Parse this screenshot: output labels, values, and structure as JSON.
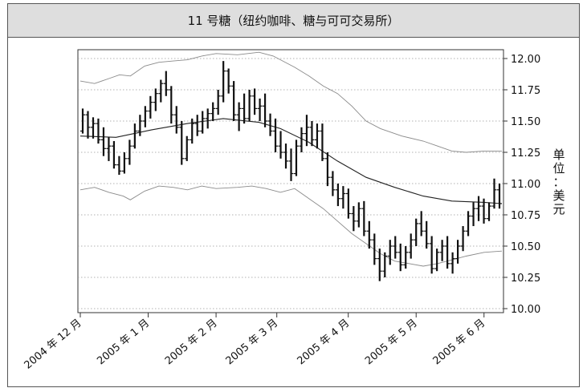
{
  "title": "11 号糖（纽约咖啡、糖与可可交易所）",
  "chart_data": {
    "type": "ohlc",
    "title": "11 号糖（纽约咖啡、糖与可可交易所）",
    "ylabel_chars": [
      "单",
      "位",
      "：",
      "美",
      "元"
    ],
    "ylim": [
      10.0,
      12.0
    ],
    "yticks": [
      10.0,
      10.25,
      10.5,
      10.75,
      11.0,
      11.25,
      11.5,
      11.75,
      12.0
    ],
    "ytick_labels": [
      "10.00",
      "10.25",
      "10.50",
      "10.75",
      "11.00",
      "11.25",
      "11.50",
      "11.75",
      "12.00"
    ],
    "x_range": [
      0,
      118
    ],
    "xtick_labels": [
      "2004 年 12 月",
      "2005 年 1 月",
      "2005 年 2 月",
      "2005 年 3 月",
      "2005 年 4 月",
      "2005 年 5 月",
      "2005 年 6 月"
    ],
    "xtick_positions": [
      0,
      19,
      38,
      55,
      75,
      94,
      113
    ],
    "grid": "horizontal dotted",
    "bars": [
      [
        11.42,
        11.6,
        11.4,
        11.55
      ],
      [
        11.55,
        11.58,
        11.36,
        11.45
      ],
      [
        11.45,
        11.53,
        11.36,
        11.48
      ],
      [
        11.48,
        11.52,
        11.32,
        11.35
      ],
      [
        11.35,
        11.45,
        11.22,
        11.28
      ],
      [
        11.28,
        11.37,
        11.18,
        11.3
      ],
      [
        11.3,
        11.34,
        11.12,
        11.15
      ],
      [
        11.15,
        11.22,
        11.07,
        11.1
      ],
      [
        11.1,
        11.25,
        11.08,
        11.2
      ],
      [
        11.2,
        11.35,
        11.15,
        11.3
      ],
      [
        11.3,
        11.48,
        11.28,
        11.42
      ],
      [
        11.42,
        11.55,
        11.38,
        11.5
      ],
      [
        11.5,
        11.62,
        11.45,
        11.58
      ],
      [
        11.58,
        11.7,
        11.52,
        11.65
      ],
      [
        11.65,
        11.76,
        11.58,
        11.72
      ],
      [
        11.72,
        11.83,
        11.65,
        11.8
      ],
      [
        11.8,
        11.9,
        11.7,
        11.75
      ],
      [
        11.75,
        11.78,
        11.48,
        11.55
      ],
      [
        11.55,
        11.62,
        11.4,
        11.45
      ],
      [
        11.45,
        11.5,
        11.15,
        11.2
      ],
      [
        11.2,
        11.38,
        11.18,
        11.35
      ],
      [
        11.35,
        11.52,
        11.32,
        11.48
      ],
      [
        11.48,
        11.55,
        11.38,
        11.42
      ],
      [
        11.42,
        11.58,
        11.4,
        11.52
      ],
      [
        11.52,
        11.6,
        11.44,
        11.56
      ],
      [
        11.56,
        11.65,
        11.5,
        11.6
      ],
      [
        11.6,
        11.75,
        11.55,
        11.7
      ],
      [
        11.7,
        11.98,
        11.65,
        11.9
      ],
      [
        11.9,
        11.92,
        11.72,
        11.78
      ],
      [
        11.78,
        11.82,
        11.5,
        11.55
      ],
      [
        11.55,
        11.65,
        11.42,
        11.6
      ],
      [
        11.6,
        11.72,
        11.48,
        11.52
      ],
      [
        11.52,
        11.75,
        11.5,
        11.7
      ],
      [
        11.7,
        11.76,
        11.55,
        11.6
      ],
      [
        11.6,
        11.68,
        11.5,
        11.62
      ],
      [
        11.62,
        11.72,
        11.45,
        11.5
      ],
      [
        11.5,
        11.56,
        11.38,
        11.42
      ],
      [
        11.42,
        11.52,
        11.25,
        11.3
      ],
      [
        11.3,
        11.42,
        11.2,
        11.25
      ],
      [
        11.25,
        11.32,
        11.12,
        11.18
      ],
      [
        11.18,
        11.28,
        11.02,
        11.08
      ],
      [
        11.08,
        11.35,
        11.06,
        11.3
      ],
      [
        11.3,
        11.45,
        11.25,
        11.4
      ],
      [
        11.4,
        11.55,
        11.3,
        11.45
      ],
      [
        11.45,
        11.5,
        11.3,
        11.35
      ],
      [
        11.35,
        11.48,
        11.28,
        11.42
      ],
      [
        11.42,
        11.48,
        11.18,
        11.2
      ],
      [
        11.2,
        11.25,
        10.98,
        11.05
      ],
      [
        11.05,
        11.1,
        10.9,
        10.95
      ],
      [
        10.95,
        11.0,
        10.82,
        10.88
      ],
      [
        10.88,
        10.98,
        10.8,
        10.92
      ],
      [
        10.92,
        10.96,
        10.72,
        10.76
      ],
      [
        10.76,
        10.82,
        10.62,
        10.7
      ],
      [
        10.7,
        10.85,
        10.65,
        10.8
      ],
      [
        10.8,
        10.86,
        10.58,
        10.62
      ],
      [
        10.62,
        10.7,
        10.48,
        10.55
      ],
      [
        10.55,
        10.6,
        10.35,
        10.4
      ],
      [
        10.4,
        10.48,
        10.22,
        10.3
      ],
      [
        10.3,
        10.45,
        10.25,
        10.42
      ],
      [
        10.42,
        10.55,
        10.35,
        10.5
      ],
      [
        10.5,
        10.58,
        10.4,
        10.45
      ],
      [
        10.45,
        10.52,
        10.3,
        10.35
      ],
      [
        10.35,
        10.5,
        10.32,
        10.45
      ],
      [
        10.45,
        10.6,
        10.4,
        10.55
      ],
      [
        10.55,
        10.72,
        10.5,
        10.68
      ],
      [
        10.68,
        10.78,
        10.58,
        10.62
      ],
      [
        10.62,
        10.7,
        10.48,
        10.52
      ],
      [
        10.52,
        10.58,
        10.28,
        10.32
      ],
      [
        10.32,
        10.48,
        10.3,
        10.45
      ],
      [
        10.45,
        10.55,
        10.38,
        10.5
      ],
      [
        10.5,
        10.58,
        10.32,
        10.36
      ],
      [
        10.36,
        10.45,
        10.28,
        10.4
      ],
      [
        10.4,
        10.55,
        10.36,
        10.5
      ],
      [
        10.5,
        10.66,
        10.46,
        10.62
      ],
      [
        10.62,
        10.78,
        10.58,
        10.74
      ],
      [
        10.74,
        10.85,
        10.66,
        10.8
      ],
      [
        10.8,
        10.9,
        10.7,
        10.82
      ],
      [
        10.82,
        10.88,
        10.68,
        10.72
      ],
      [
        10.72,
        10.85,
        10.7,
        10.82
      ],
      [
        10.82,
        11.04,
        10.8,
        10.95
      ],
      [
        10.95,
        11.0,
        10.8,
        10.84
      ]
    ],
    "sma": [
      [
        0,
        11.38
      ],
      [
        10,
        11.37
      ],
      [
        20,
        11.43
      ],
      [
        30,
        11.48
      ],
      [
        40,
        11.52
      ],
      [
        50,
        11.49
      ],
      [
        56,
        11.44
      ],
      [
        64,
        11.33
      ],
      [
        72,
        11.18
      ],
      [
        80,
        11.05
      ],
      [
        88,
        10.97
      ],
      [
        96,
        10.9
      ],
      [
        104,
        10.86
      ],
      [
        113,
        10.85
      ],
      [
        118,
        10.84
      ]
    ],
    "upper_band": [
      [
        0,
        11.82
      ],
      [
        4,
        11.8
      ],
      [
        8,
        11.84
      ],
      [
        11,
        11.87
      ],
      [
        14,
        11.86
      ],
      [
        18,
        11.94
      ],
      [
        22,
        11.97
      ],
      [
        26,
        11.98
      ],
      [
        30,
        11.99
      ],
      [
        34,
        12.02
      ],
      [
        38,
        12.04
      ],
      [
        44,
        12.03
      ],
      [
        50,
        12.05
      ],
      [
        54,
        12.02
      ],
      [
        60,
        11.93
      ],
      [
        64,
        11.86
      ],
      [
        68,
        11.78
      ],
      [
        72,
        11.72
      ],
      [
        76,
        11.62
      ],
      [
        80,
        11.5
      ],
      [
        84,
        11.44
      ],
      [
        90,
        11.38
      ],
      [
        96,
        11.34
      ],
      [
        100,
        11.3
      ],
      [
        104,
        11.26
      ],
      [
        108,
        11.25
      ],
      [
        113,
        11.26
      ],
      [
        118,
        11.26
      ]
    ],
    "lower_band": [
      [
        0,
        10.95
      ],
      [
        4,
        10.97
      ],
      [
        8,
        10.93
      ],
      [
        12,
        10.9
      ],
      [
        14,
        10.87
      ],
      [
        18,
        10.94
      ],
      [
        22,
        10.98
      ],
      [
        26,
        10.97
      ],
      [
        30,
        10.95
      ],
      [
        34,
        10.98
      ],
      [
        38,
        10.96
      ],
      [
        44,
        10.97
      ],
      [
        48,
        10.98
      ],
      [
        52,
        10.96
      ],
      [
        56,
        10.93
      ],
      [
        60,
        10.96
      ],
      [
        64,
        10.88
      ],
      [
        68,
        10.8
      ],
      [
        72,
        10.7
      ],
      [
        76,
        10.6
      ],
      [
        80,
        10.52
      ],
      [
        84,
        10.44
      ],
      [
        88,
        10.38
      ],
      [
        92,
        10.36
      ],
      [
        96,
        10.34
      ],
      [
        100,
        10.36
      ],
      [
        104,
        10.39
      ],
      [
        108,
        10.42
      ],
      [
        113,
        10.45
      ],
      [
        118,
        10.46
      ]
    ]
  }
}
